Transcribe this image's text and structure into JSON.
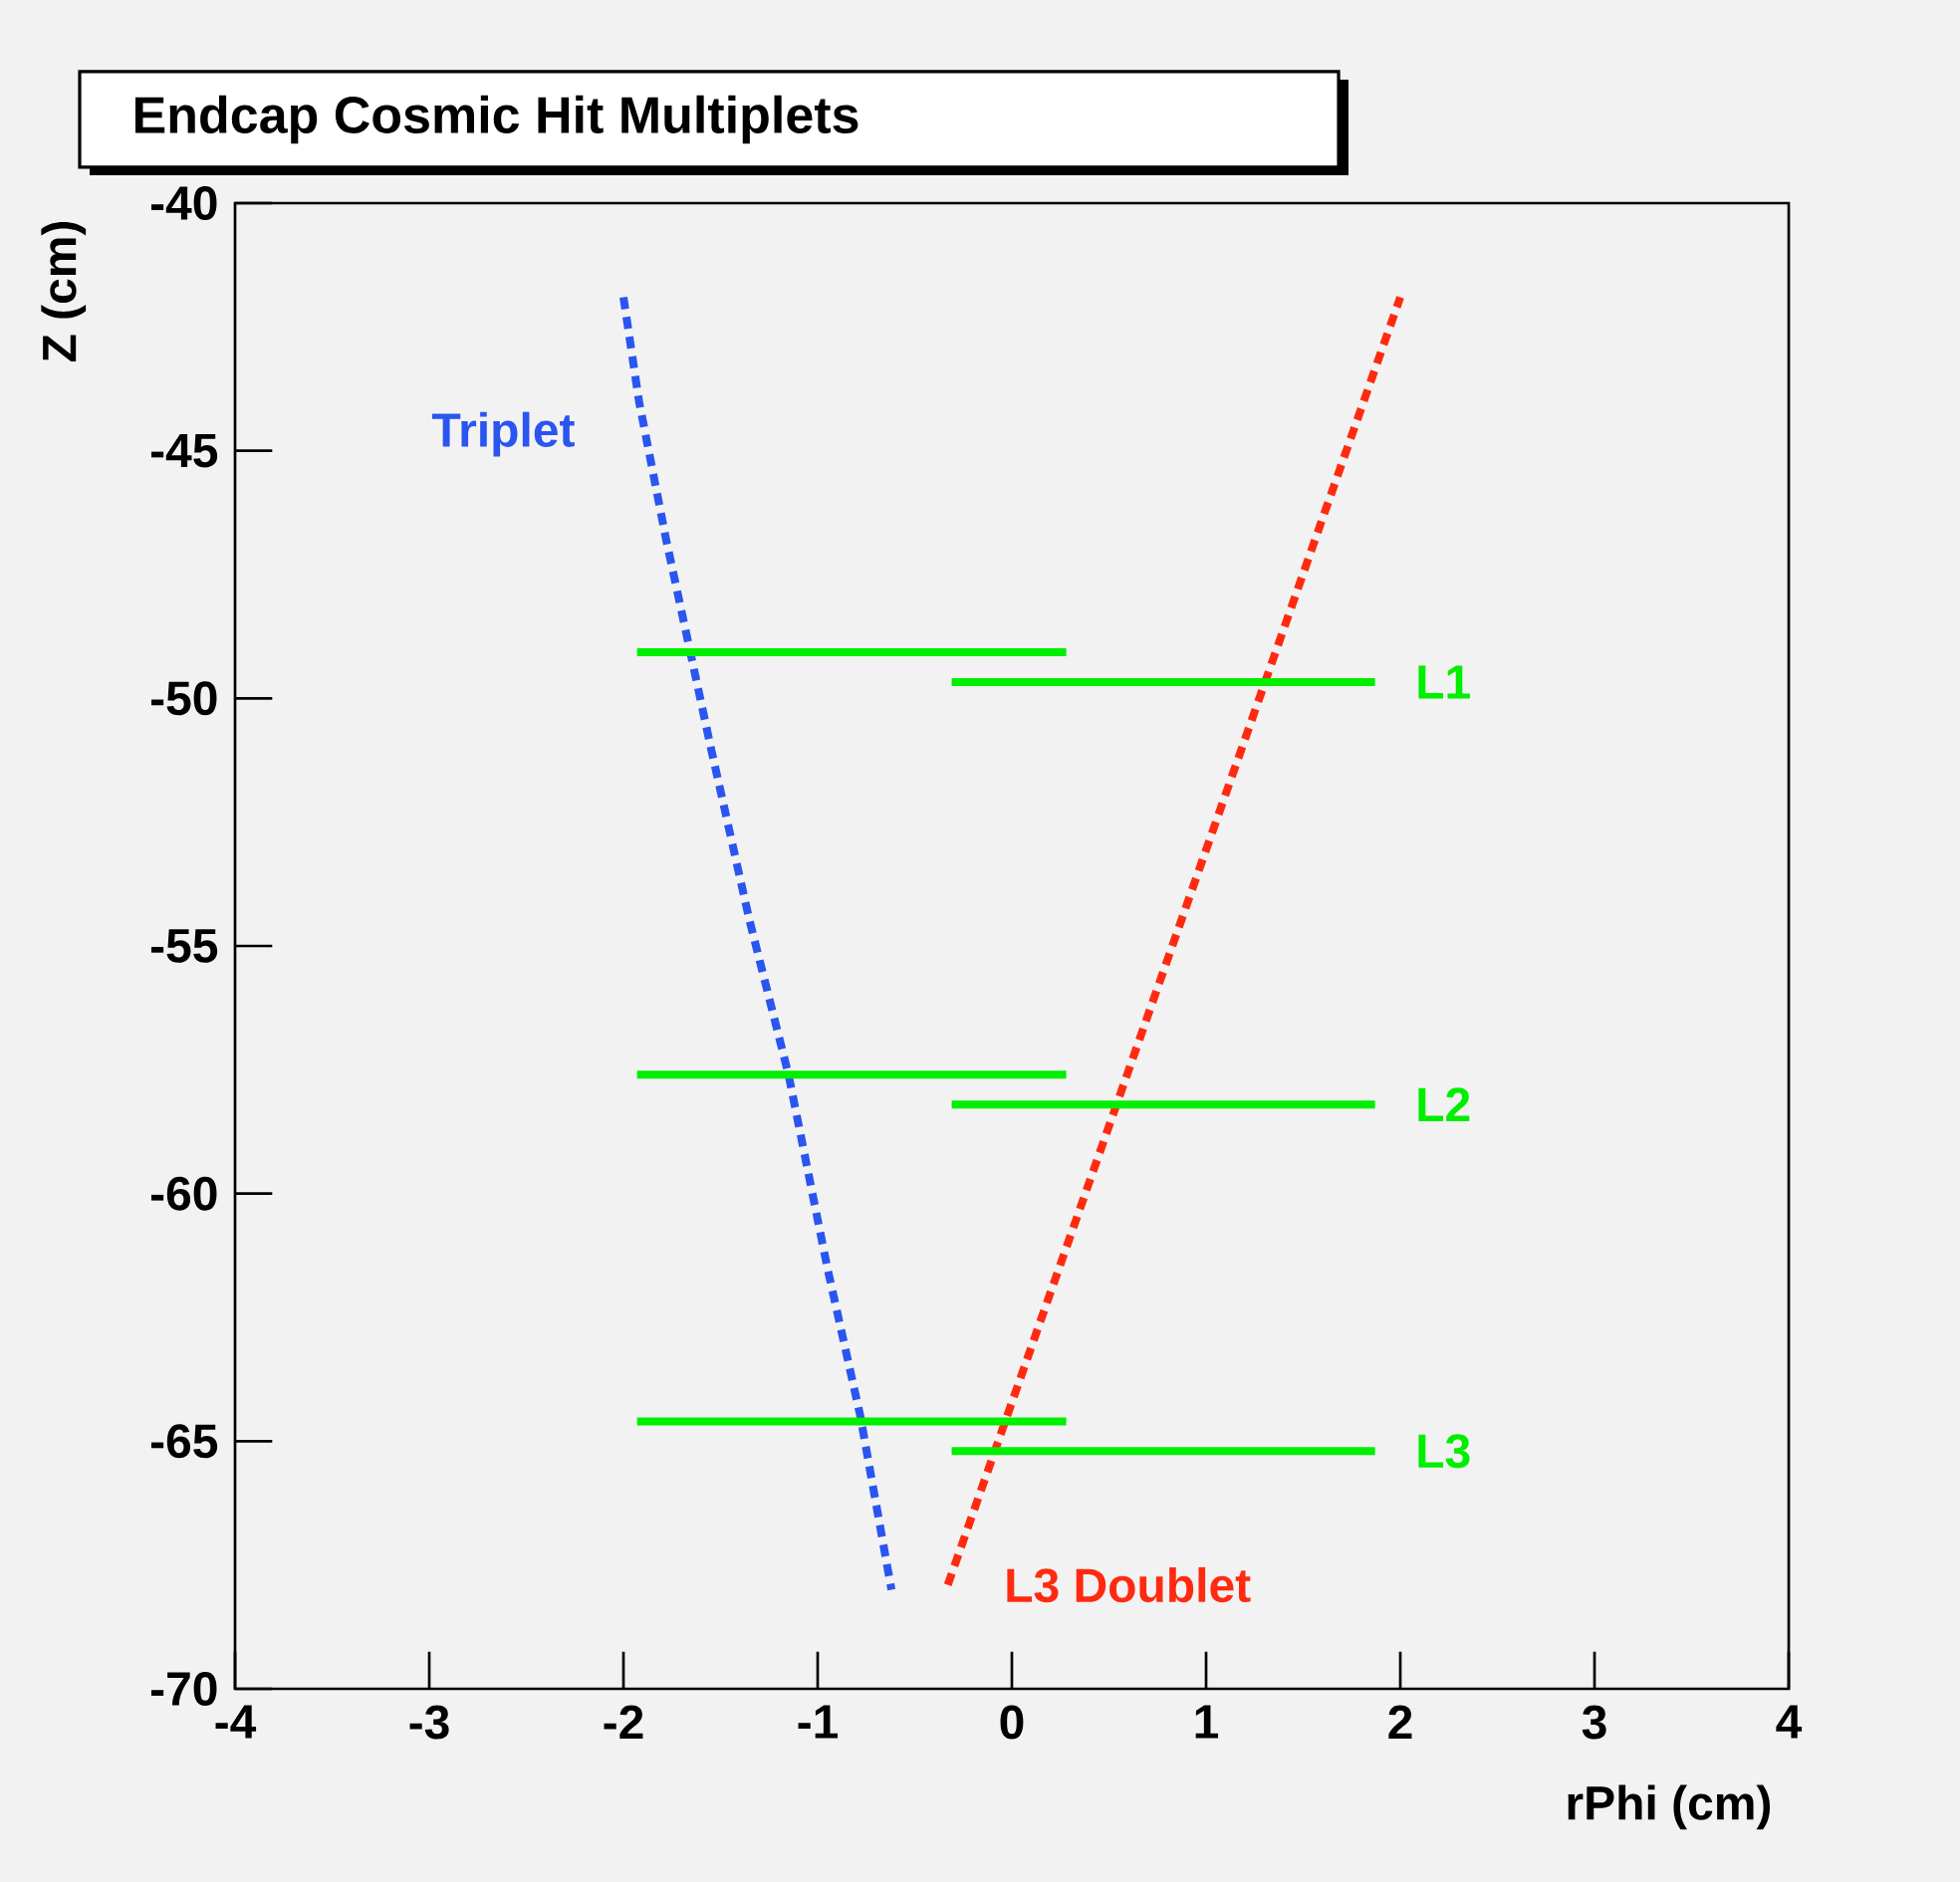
{
  "chart_data": {
    "type": "line",
    "title": "Endcap Cosmic Hit Multiplets",
    "xlabel": "rPhi (cm)",
    "ylabel": "Z (cm)",
    "xlim": [
      -4,
      4
    ],
    "ylim": [
      -70,
      -40
    ],
    "xticks": [
      -4,
      -3,
      -2,
      -1,
      0,
      1,
      2,
      3,
      4
    ],
    "yticks": [
      -70,
      -65,
      -60,
      -55,
      -50,
      -45,
      -40
    ],
    "grid": false,
    "legend": false,
    "marker": "none",
    "series": [
      {
        "name": "Triplet",
        "color": "#2a55f0",
        "line_style": "dotted",
        "x": [
          -2.0,
          -1.92,
          -1.78,
          -1.55,
          -1.35,
          -1.15,
          -0.95,
          -0.78,
          -0.62
        ],
        "values": [
          -41.9,
          -44.0,
          -46.8,
          -51.0,
          -54.5,
          -57.6,
          -61.5,
          -64.5,
          -68.0
        ]
      },
      {
        "name": "L3 Doublet",
        "color": "#ff2a10",
        "line_style": "dotted",
        "x": [
          -0.33,
          2.0
        ],
        "values": [
          -67.9,
          -41.9
        ]
      },
      {
        "name": "L1",
        "color": "#00ee00",
        "line_style": "solid",
        "x": [
          -1.93,
          0.28,
          null,
          -0.31,
          1.87
        ],
        "values": [
          -49.07,
          -49.07,
          null,
          -49.67,
          -49.67
        ]
      },
      {
        "name": "L2",
        "color": "#00ee00",
        "line_style": "solid",
        "x": [
          -1.93,
          0.28,
          null,
          -0.31,
          1.87
        ],
        "values": [
          -57.6,
          -57.6,
          null,
          -58.2,
          -58.2
        ]
      },
      {
        "name": "L3",
        "color": "#00ee00",
        "line_style": "solid",
        "x": [
          -1.93,
          0.28,
          null,
          -0.31,
          1.87
        ],
        "values": [
          -64.6,
          -64.6,
          null,
          -65.2,
          -65.2
        ]
      }
    ]
  }
}
